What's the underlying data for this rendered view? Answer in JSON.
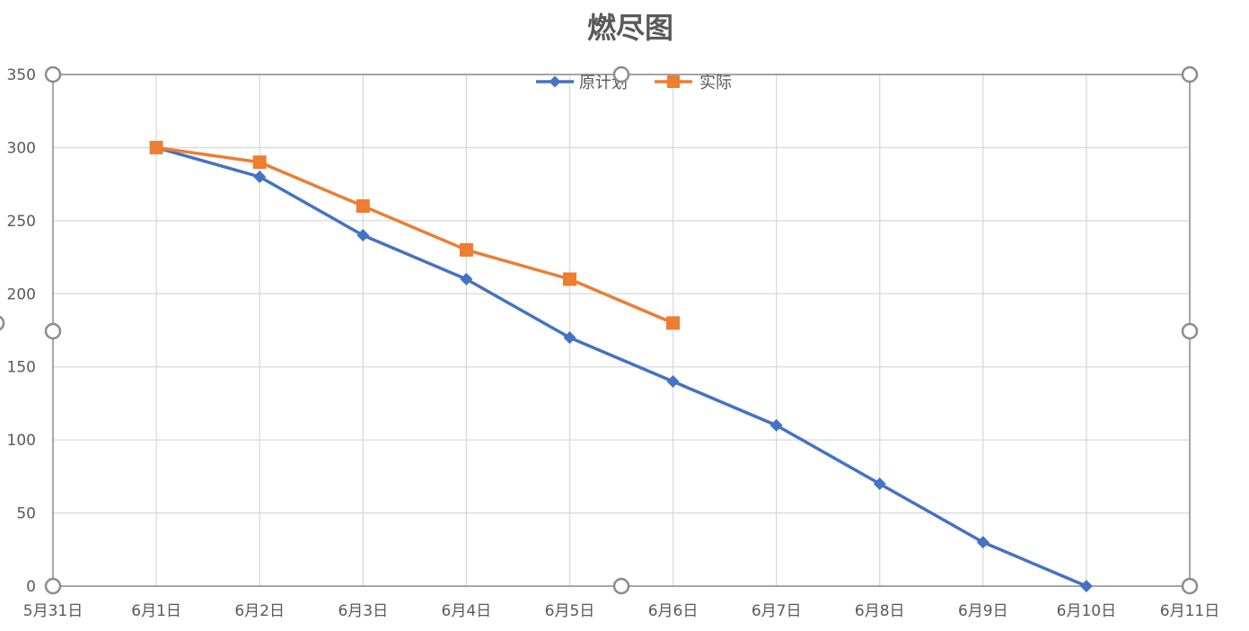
{
  "colors": {
    "plan": "#4472C4",
    "actual": "#ED7D31",
    "grid": "#D9D9D9",
    "axis": "#888888",
    "text": "#595959",
    "handle": "#8C8C8C"
  },
  "chart_data": {
    "type": "line",
    "title": "燃尽图",
    "xlabel": "",
    "ylabel": "",
    "x_tick_labels": [
      "5月31日",
      "6月1日",
      "6月2日",
      "6月3日",
      "6月4日",
      "6月5日",
      "6月6日",
      "6月7日",
      "6月8日",
      "6月9日",
      "6月10日",
      "6月11日"
    ],
    "xlim": [
      "5月31日",
      "6月11日"
    ],
    "ylim": [
      0,
      350
    ],
    "y_ticks": [
      0,
      50,
      100,
      150,
      200,
      250,
      300,
      350
    ],
    "grid": true,
    "legend_position": "top",
    "series": [
      {
        "name": "原计划",
        "marker": "diamond",
        "color": "#4472C4",
        "x": [
          "6月1日",
          "6月2日",
          "6月3日",
          "6月4日",
          "6月5日",
          "6月6日",
          "6月7日",
          "6月8日",
          "6月9日",
          "6月10日"
        ],
        "values": [
          300,
          280,
          240,
          210,
          170,
          140,
          110,
          70,
          30,
          0
        ]
      },
      {
        "name": "实际",
        "marker": "square",
        "color": "#ED7D31",
        "x": [
          "6月1日",
          "6月2日",
          "6月3日",
          "6月4日",
          "6月5日",
          "6月6日"
        ],
        "values": [
          300,
          290,
          260,
          230,
          210,
          180
        ]
      }
    ]
  }
}
